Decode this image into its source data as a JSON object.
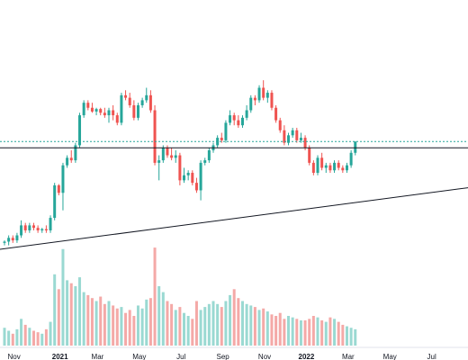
{
  "chart_data": {
    "type": "candlestick",
    "title": "",
    "xlabel": "",
    "ylabel": "",
    "x_tick_labels": [
      "Nov",
      "2021",
      "Mar",
      "May",
      "Jul",
      "Sep",
      "Nov",
      "2022",
      "Mar",
      "May",
      "Jul"
    ],
    "bold_tick_labels": [
      "2021",
      "2022"
    ],
    "colors": {
      "up": "#26a69a",
      "down": "#ef5350",
      "up_volume": "#9ad9d2",
      "down_volume": "#f4a9a7",
      "resistance": "#131722",
      "support": "#131722",
      "price_line": "#26a69a"
    },
    "resistance_level": 51,
    "last_price": 53.5,
    "ylim": [
      0,
      100
    ],
    "support_trendline": {
      "start": {
        "bar": -3,
        "price": 10
      },
      "end": {
        "bar": 129,
        "price": 39
      }
    },
    "candles": [
      {
        "o": 13,
        "h": 14,
        "l": 12,
        "c": 13.5
      },
      {
        "o": 13.5,
        "h": 16,
        "l": 12,
        "c": 15
      },
      {
        "o": 15,
        "h": 16,
        "l": 13,
        "c": 14
      },
      {
        "o": 14,
        "h": 17,
        "l": 13,
        "c": 16
      },
      {
        "o": 16,
        "h": 22,
        "l": 15,
        "c": 20
      },
      {
        "o": 20,
        "h": 21,
        "l": 17,
        "c": 18
      },
      {
        "o": 18,
        "h": 21,
        "l": 17,
        "c": 20
      },
      {
        "o": 20,
        "h": 21,
        "l": 18,
        "c": 19
      },
      {
        "o": 19,
        "h": 20,
        "l": 17,
        "c": 18
      },
      {
        "o": 18,
        "h": 19,
        "l": 17,
        "c": 18.5
      },
      {
        "o": 18.5,
        "h": 20,
        "l": 17,
        "c": 18
      },
      {
        "o": 18,
        "h": 24,
        "l": 17,
        "c": 23
      },
      {
        "o": 23,
        "h": 37,
        "l": 22,
        "c": 36
      },
      {
        "o": 36,
        "h": 36.5,
        "l": 32,
        "c": 33
      },
      {
        "o": 33,
        "h": 45,
        "l": 26,
        "c": 44
      },
      {
        "o": 44,
        "h": 48,
        "l": 43,
        "c": 47
      },
      {
        "o": 47,
        "h": 50,
        "l": 45,
        "c": 46
      },
      {
        "o": 46,
        "h": 53,
        "l": 45,
        "c": 52
      },
      {
        "o": 52,
        "h": 65,
        "l": 51,
        "c": 64
      },
      {
        "o": 64,
        "h": 70,
        "l": 63,
        "c": 69
      },
      {
        "o": 69,
        "h": 70,
        "l": 66,
        "c": 67
      },
      {
        "o": 67,
        "h": 69,
        "l": 65,
        "c": 65.5
      },
      {
        "o": 65.5,
        "h": 67,
        "l": 64,
        "c": 66.5
      },
      {
        "o": 66.5,
        "h": 67,
        "l": 64,
        "c": 65
      },
      {
        "o": 65,
        "h": 67,
        "l": 63,
        "c": 64
      },
      {
        "o": 64,
        "h": 67,
        "l": 61,
        "c": 66
      },
      {
        "o": 66,
        "h": 68,
        "l": 62,
        "c": 64
      },
      {
        "o": 64,
        "h": 65,
        "l": 60,
        "c": 61
      },
      {
        "o": 61,
        "h": 73,
        "l": 60,
        "c": 72
      },
      {
        "o": 72,
        "h": 74,
        "l": 70,
        "c": 71
      },
      {
        "o": 71,
        "h": 73,
        "l": 67,
        "c": 68
      },
      {
        "o": 68,
        "h": 70,
        "l": 62,
        "c": 63
      },
      {
        "o": 63,
        "h": 69,
        "l": 62,
        "c": 68
      },
      {
        "o": 68,
        "h": 71,
        "l": 67,
        "c": 70
      },
      {
        "o": 70,
        "h": 75,
        "l": 69,
        "c": 72
      },
      {
        "o": 72,
        "h": 74,
        "l": 65,
        "c": 66
      },
      {
        "o": 66,
        "h": 68,
        "l": 44,
        "c": 45
      },
      {
        "o": 45,
        "h": 48,
        "l": 38,
        "c": 46
      },
      {
        "o": 46,
        "h": 52,
        "l": 45,
        "c": 51
      },
      {
        "o": 51,
        "h": 52,
        "l": 47,
        "c": 48
      },
      {
        "o": 48,
        "h": 51,
        "l": 46,
        "c": 47
      },
      {
        "o": 47,
        "h": 50,
        "l": 45,
        "c": 48
      },
      {
        "o": 48,
        "h": 49,
        "l": 36,
        "c": 38
      },
      {
        "o": 38,
        "h": 43,
        "l": 37,
        "c": 40
      },
      {
        "o": 40,
        "h": 42,
        "l": 38,
        "c": 41
      },
      {
        "o": 41,
        "h": 42,
        "l": 36,
        "c": 37
      },
      {
        "o": 37,
        "h": 39,
        "l": 33,
        "c": 34
      },
      {
        "o": 34,
        "h": 46,
        "l": 30,
        "c": 45
      },
      {
        "o": 45,
        "h": 47,
        "l": 44,
        "c": 46
      },
      {
        "o": 46,
        "h": 51,
        "l": 45,
        "c": 50
      },
      {
        "o": 50,
        "h": 53,
        "l": 49,
        "c": 52
      },
      {
        "o": 52,
        "h": 56,
        "l": 51,
        "c": 55
      },
      {
        "o": 55,
        "h": 57,
        "l": 53,
        "c": 54
      },
      {
        "o": 54,
        "h": 62,
        "l": 53,
        "c": 61
      },
      {
        "o": 61,
        "h": 66,
        "l": 60,
        "c": 64
      },
      {
        "o": 64,
        "h": 65,
        "l": 60,
        "c": 62
      },
      {
        "o": 62,
        "h": 64,
        "l": 59,
        "c": 60
      },
      {
        "o": 60,
        "h": 64,
        "l": 59,
        "c": 63
      },
      {
        "o": 63,
        "h": 68,
        "l": 62,
        "c": 66
      },
      {
        "o": 66,
        "h": 72,
        "l": 65,
        "c": 71
      },
      {
        "o": 71,
        "h": 72,
        "l": 68,
        "c": 70
      },
      {
        "o": 70,
        "h": 76,
        "l": 69,
        "c": 75
      },
      {
        "o": 75,
        "h": 78,
        "l": 70,
        "c": 71
      },
      {
        "o": 71,
        "h": 74,
        "l": 69,
        "c": 73
      },
      {
        "o": 73,
        "h": 74,
        "l": 66,
        "c": 67
      },
      {
        "o": 67,
        "h": 68,
        "l": 61,
        "c": 62
      },
      {
        "o": 62,
        "h": 63,
        "l": 57,
        "c": 58
      },
      {
        "o": 58,
        "h": 60,
        "l": 52,
        "c": 53
      },
      {
        "o": 53,
        "h": 57,
        "l": 52,
        "c": 56
      },
      {
        "o": 56,
        "h": 59,
        "l": 55,
        "c": 58
      },
      {
        "o": 58,
        "h": 59,
        "l": 53,
        "c": 54
      },
      {
        "o": 54,
        "h": 57,
        "l": 53,
        "c": 55
      },
      {
        "o": 55,
        "h": 56,
        "l": 50,
        "c": 51
      },
      {
        "o": 51,
        "h": 52,
        "l": 44,
        "c": 45
      },
      {
        "o": 45,
        "h": 46,
        "l": 40,
        "c": 41
      },
      {
        "o": 41,
        "h": 48,
        "l": 40,
        "c": 47
      },
      {
        "o": 47,
        "h": 49,
        "l": 42,
        "c": 43
      },
      {
        "o": 43,
        "h": 45,
        "l": 41,
        "c": 44
      },
      {
        "o": 44,
        "h": 45,
        "l": 41,
        "c": 42
      },
      {
        "o": 42,
        "h": 46,
        "l": 41,
        "c": 45
      },
      {
        "o": 45,
        "h": 46,
        "l": 42,
        "c": 43
      },
      {
        "o": 43,
        "h": 44,
        "l": 41,
        "c": 42
      },
      {
        "o": 42,
        "h": 45,
        "l": 41,
        "c": 44
      },
      {
        "o": 44,
        "h": 50,
        "l": 43,
        "c": 49
      },
      {
        "o": 49,
        "h": 53.5,
        "l": 48,
        "c": 53.5
      }
    ],
    "volume": [
      12,
      10,
      8,
      11,
      18,
      14,
      12,
      10,
      9,
      8,
      11,
      16,
      48,
      38,
      65,
      44,
      42,
      40,
      46,
      36,
      34,
      32,
      30,
      33,
      28,
      30,
      27,
      25,
      26,
      22,
      24,
      20,
      27,
      25,
      31,
      32,
      66,
      40,
      36,
      30,
      28,
      24,
      26,
      22,
      20,
      18,
      30,
      24,
      26,
      28,
      30,
      28,
      26,
      30,
      34,
      38,
      32,
      30,
      28,
      27,
      26,
      24,
      25,
      23,
      21,
      20,
      22,
      18,
      20,
      19,
      18,
      17,
      17,
      18,
      20,
      19,
      17,
      16,
      19,
      18,
      16,
      14,
      13,
      12,
      11
    ]
  }
}
